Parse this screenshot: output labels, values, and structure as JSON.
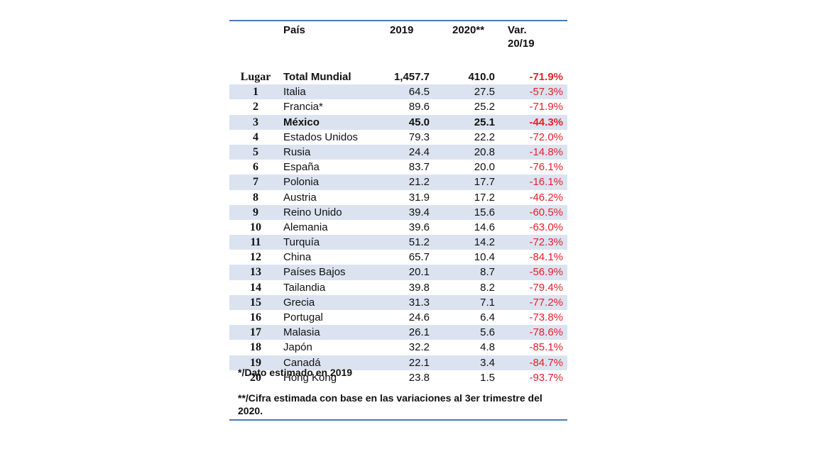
{
  "table": {
    "headers": {
      "pais": "País",
      "y2019": "2019",
      "y2020": "2020**",
      "var_line1": "Var.",
      "var_line2": "20/19"
    },
    "total": {
      "rank_label": "Lugar",
      "country": "Total Mundial",
      "v2019": "1,457.7",
      "v2020": "410.0",
      "var": "-71.9%"
    },
    "rows": [
      {
        "rank": "1",
        "country": "Italia",
        "v2019": "64.5",
        "v2020": "27.5",
        "var": "-57.3%"
      },
      {
        "rank": "2",
        "country": "Francia*",
        "v2019": "89.6",
        "v2020": "25.2",
        "var": "-71.9%"
      },
      {
        "rank": "3",
        "country": "México",
        "v2019": "45.0",
        "v2020": "25.1",
        "var": "-44.3%",
        "bold": true
      },
      {
        "rank": "4",
        "country": "Estados Unidos",
        "v2019": "79.3",
        "v2020": "22.2",
        "var": "-72.0%"
      },
      {
        "rank": "5",
        "country": "Rusia",
        "v2019": "24.4",
        "v2020": "20.8",
        "var": "-14.8%"
      },
      {
        "rank": "6",
        "country": "España",
        "v2019": "83.7",
        "v2020": "20.0",
        "var": "-76.1%"
      },
      {
        "rank": "7",
        "country": "Polonia",
        "v2019": "21.2",
        "v2020": "17.7",
        "var": "-16.1%"
      },
      {
        "rank": "8",
        "country": "Austria",
        "v2019": "31.9",
        "v2020": "17.2",
        "var": "-46.2%"
      },
      {
        "rank": "9",
        "country": "Reino Unido",
        "v2019": "39.4",
        "v2020": "15.6",
        "var": "-60.5%"
      },
      {
        "rank": "10",
        "country": "Alemania",
        "v2019": "39.6",
        "v2020": "14.6",
        "var": "-63.0%"
      },
      {
        "rank": "11",
        "country": "Turquía",
        "v2019": "51.2",
        "v2020": "14.2",
        "var": "-72.3%"
      },
      {
        "rank": "12",
        "country": "China",
        "v2019": "65.7",
        "v2020": "10.4",
        "var": "-84.1%"
      },
      {
        "rank": "13",
        "country": "Países Bajos",
        "v2019": "20.1",
        "v2020": "8.7",
        "var": "-56.9%"
      },
      {
        "rank": "14",
        "country": "Tailandia",
        "v2019": "39.8",
        "v2020": "8.2",
        "var": "-79.4%"
      },
      {
        "rank": "15",
        "country": "Grecia",
        "v2019": "31.3",
        "v2020": "7.1",
        "var": "-77.2%"
      },
      {
        "rank": "16",
        "country": "Portugal",
        "v2019": "24.6",
        "v2020": "6.4",
        "var": "-73.8%"
      },
      {
        "rank": "17",
        "country": "Malasia",
        "v2019": "26.1",
        "v2020": "5.6",
        "var": "-78.6%"
      },
      {
        "rank": "18",
        "country": "Japón",
        "v2019": "32.2",
        "v2020": "4.8",
        "var": "-85.1%"
      },
      {
        "rank": "19",
        "country": "Canadá",
        "v2019": "22.1",
        "v2020": "3.4",
        "var": "-84.7%"
      },
      {
        "rank": "20",
        "country": "Hong Kong",
        "v2019": "23.8",
        "v2020": "1.5",
        "var": "-93.7%"
      }
    ]
  },
  "notes": {
    "note1": "*/Dato estimado en 2019",
    "note2": "**/Cifra estimada con base en las variaciones al 3er trimestre del 2020."
  },
  "colors": {
    "rule": "#4a78b5",
    "row_shade": "#dce3f0",
    "negative": "#e8202a"
  }
}
